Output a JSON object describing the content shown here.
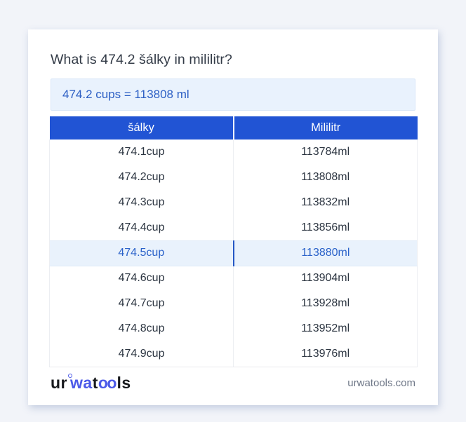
{
  "header": {
    "title": "What is 474.2 šálky in mililitr?"
  },
  "result": {
    "text": "474.2 cups = 113808 ml"
  },
  "table": {
    "columns": [
      "šálky",
      "Mililitr"
    ],
    "rows": [
      [
        "474.1cup",
        "113784ml"
      ],
      [
        "474.2cup",
        "113808ml"
      ],
      [
        "474.3cup",
        "113832ml"
      ],
      [
        "474.4cup",
        "113856ml"
      ],
      [
        "474.5cup",
        "113880ml"
      ],
      [
        "474.6cup",
        "113904ml"
      ],
      [
        "474.7cup",
        "113928ml"
      ],
      [
        "474.8cup",
        "113952ml"
      ],
      [
        "474.9cup",
        "113976ml"
      ]
    ],
    "highlighted_index": 4
  },
  "footer": {
    "logo_parts": {
      "p1": "ur",
      "p2": "wa",
      "p3": "t",
      "p4": "oo",
      "p5": "ls"
    },
    "website": "urwatools.com"
  },
  "colors": {
    "page_background": "#f2f4f9",
    "card_background": "#ffffff",
    "table_header_blue": "#2154d4",
    "highlight_row_background": "#e9f2fc",
    "highlight_text_blue": "#2a62c9",
    "result_box_background": "#e9f2fd",
    "result_text_blue": "#2b5ec4",
    "logo_blue": "#4c5ae8",
    "title_text": "#333b47",
    "url_gray": "#6e7787"
  }
}
